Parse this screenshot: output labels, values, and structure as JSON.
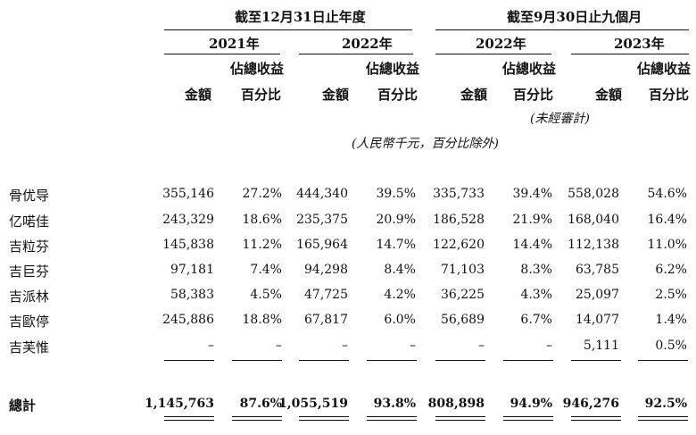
{
  "headers": {
    "period_year_end": "截至12月31日止年度",
    "period_nine_months": "截至9月30日止九個月",
    "years": [
      "2021年",
      "2022年",
      "2022年",
      "2023年"
    ],
    "col_amount": "金額",
    "col_pct_line1": "佔總收益",
    "col_pct_line2": "百分比",
    "unaudited": "(未經審計)",
    "unit_note": "(人民幣千元，百分比除外)"
  },
  "rows": [
    {
      "label": "骨优导",
      "values": [
        "355,146",
        "27.2%",
        "444,340",
        "39.5%",
        "335,733",
        "39.4%",
        "558,028",
        "54.6%"
      ]
    },
    {
      "label": "亿喏佳",
      "values": [
        "243,329",
        "18.6%",
        "235,375",
        "20.9%",
        "186,528",
        "21.9%",
        "168,040",
        "16.4%"
      ]
    },
    {
      "label": "吉粒芬",
      "values": [
        "145,838",
        "11.2%",
        "165,964",
        "14.7%",
        "122,620",
        "14.4%",
        "112,138",
        "11.0%"
      ]
    },
    {
      "label": "吉巨芬",
      "values": [
        "97,181",
        "7.4%",
        "94,298",
        "8.4%",
        "71,103",
        "8.3%",
        "63,785",
        "6.2%"
      ]
    },
    {
      "label": "吉派林",
      "values": [
        "58,383",
        "4.5%",
        "47,725",
        "4.2%",
        "36,225",
        "4.3%",
        "25,097",
        "2.5%"
      ]
    },
    {
      "label": "吉歐停",
      "values": [
        "245,886",
        "18.8%",
        "67,817",
        "6.0%",
        "56,689",
        "6.7%",
        "14,077",
        "1.4%"
      ]
    },
    {
      "label": "吉芙惟",
      "values": [
        "–",
        "–",
        "–",
        "–",
        "–",
        "–",
        "5,111",
        "0.5%"
      ]
    }
  ],
  "total": {
    "label": "總計",
    "values": [
      "1,145,763",
      "87.6%",
      "1,055,519",
      "93.8%",
      "808,898",
      "94.9%",
      "946,276",
      "92.5%"
    ]
  }
}
